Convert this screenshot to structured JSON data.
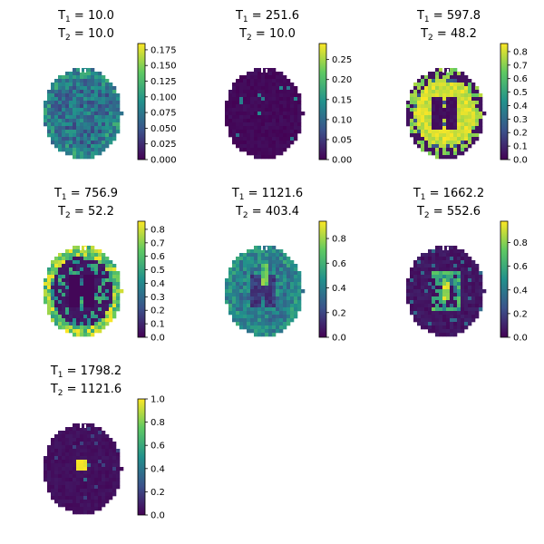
{
  "chart_data": {
    "type": "heatmap",
    "colormap": "viridis",
    "colormap_stops": [
      "#440154",
      "#3b528b",
      "#21918c",
      "#5ec962",
      "#fde725"
    ],
    "panels": [
      {
        "t1_label": "T",
        "t1_sub": "1",
        "t1_eq": " = 10.0",
        "t2_label": "T",
        "t2_sub": "2",
        "t2_eq": " = 10.0",
        "cbar_min": 0,
        "cbar_max": 0.185,
        "ticks": [
          "0.000",
          "0.025",
          "0.050",
          "0.075",
          "0.100",
          "0.125",
          "0.150",
          "0.175"
        ],
        "tick_values": [
          0,
          0.025,
          0.05,
          0.075,
          0.1,
          0.125,
          0.15,
          0.175
        ],
        "pattern": "uniform-low"
      },
      {
        "t1_label": "T",
        "t1_sub": "1",
        "t1_eq": " = 251.6",
        "t2_label": "T",
        "t2_sub": "2",
        "t2_eq": " = 10.0",
        "cbar_min": 0,
        "cbar_max": 0.29,
        "ticks": [
          "0.00",
          "0.05",
          "0.10",
          "0.15",
          "0.20",
          "0.25"
        ],
        "tick_values": [
          0,
          0.05,
          0.1,
          0.15,
          0.2,
          0.25
        ],
        "pattern": "near-zero"
      },
      {
        "t1_label": "T",
        "t1_sub": "1",
        "t1_eq": " = 597.8",
        "t2_label": "T",
        "t2_sub": "2",
        "t2_eq": " = 48.2",
        "cbar_min": 0,
        "cbar_max": 0.86,
        "ticks": [
          "0.0",
          "0.1",
          "0.2",
          "0.3",
          "0.4",
          "0.5",
          "0.6",
          "0.7",
          "0.8"
        ],
        "tick_values": [
          0,
          0.1,
          0.2,
          0.3,
          0.4,
          0.5,
          0.6,
          0.7,
          0.8
        ],
        "pattern": "white-matter"
      },
      {
        "t1_label": "T",
        "t1_sub": "1",
        "t1_eq": " = 756.9",
        "t2_label": "T",
        "t2_sub": "2",
        "t2_eq": " = 52.2",
        "cbar_min": 0,
        "cbar_max": 0.86,
        "ticks": [
          "0.0",
          "0.1",
          "0.2",
          "0.3",
          "0.4",
          "0.5",
          "0.6",
          "0.7",
          "0.8"
        ],
        "tick_values": [
          0,
          0.1,
          0.2,
          0.3,
          0.4,
          0.5,
          0.6,
          0.7,
          0.8
        ],
        "pattern": "gray-matter"
      },
      {
        "t1_label": "T",
        "t1_sub": "1",
        "t1_eq": " = 1121.6",
        "t2_label": "T",
        "t2_sub": "2",
        "t2_eq": " = 403.4",
        "cbar_min": 0,
        "cbar_max": 0.94,
        "ticks": [
          "0.0",
          "0.2",
          "0.4",
          "0.6",
          "0.8"
        ],
        "tick_values": [
          0,
          0.2,
          0.4,
          0.6,
          0.8
        ],
        "pattern": "diffuse-mid"
      },
      {
        "t1_label": "T",
        "t1_sub": "1",
        "t1_eq": " = 1662.2",
        "t2_label": "T",
        "t2_sub": "2",
        "t2_eq": " = 552.6",
        "cbar_min": 0,
        "cbar_max": 0.98,
        "ticks": [
          "0.0",
          "0.2",
          "0.4",
          "0.6",
          "0.8"
        ],
        "tick_values": [
          0,
          0.2,
          0.4,
          0.6,
          0.8
        ],
        "pattern": "ventricle-rim"
      },
      {
        "t1_label": "T",
        "t1_sub": "1",
        "t1_eq": " = 1798.2",
        "t2_label": "T",
        "t2_sub": "2",
        "t2_eq": " = 1121.6",
        "cbar_min": 0,
        "cbar_max": 1.0,
        "ticks": [
          "0.0",
          "0.2",
          "0.4",
          "0.6",
          "0.8",
          "1.0"
        ],
        "tick_values": [
          0,
          0.2,
          0.4,
          0.6,
          0.8,
          1.0
        ],
        "pattern": "csf-spot"
      }
    ]
  }
}
